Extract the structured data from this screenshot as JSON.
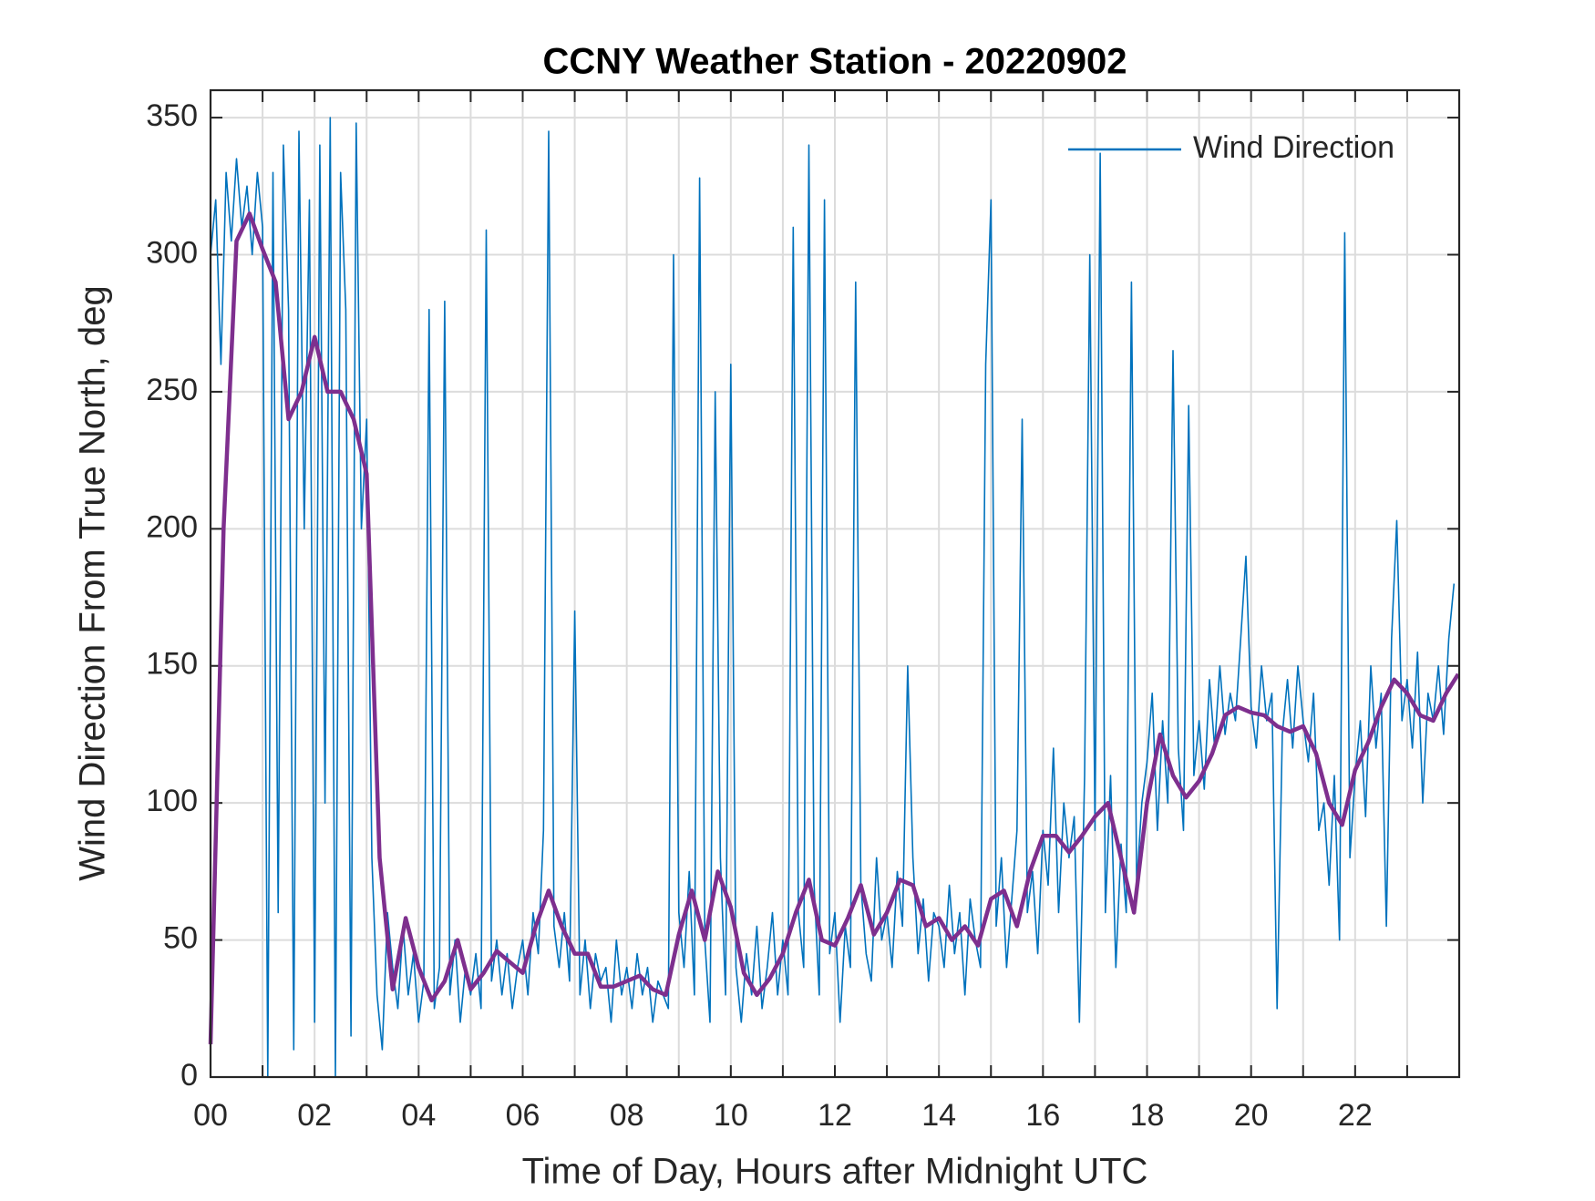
{
  "chart_data": {
    "type": "line",
    "title": "CCNY Weather Station - 20220902",
    "xlabel": "Time of Day, Hours after Midnight UTC",
    "ylabel": "Wind Direction From True North, deg",
    "xlim": [
      0,
      24
    ],
    "ylim": [
      0,
      360
    ],
    "xticks": [
      {
        "value": 0,
        "label": "00"
      },
      {
        "value": 2,
        "label": "02"
      },
      {
        "value": 4,
        "label": "04"
      },
      {
        "value": 6,
        "label": "06"
      },
      {
        "value": 8,
        "label": "08"
      },
      10,
      12,
      14,
      16,
      18,
      20,
      22
    ],
    "xminorticks": [
      1,
      3,
      5,
      7,
      9,
      11,
      13,
      15,
      17,
      19,
      21,
      23
    ],
    "yticks": [
      0,
      50,
      100,
      150,
      200,
      250,
      300,
      350
    ],
    "grid": true,
    "legend": "upper right",
    "series": [
      {
        "name": "Wind Direction",
        "color": "#0072bd",
        "x": [
          0,
          0.1,
          0.2,
          0.3,
          0.4,
          0.5,
          0.6,
          0.7,
          0.8,
          0.9,
          1,
          1.1,
          1.2,
          1.3,
          1.4,
          1.5,
          1.6,
          1.7,
          1.8,
          1.9,
          2,
          2.1,
          2.2,
          2.3,
          2.4,
          2.5,
          2.6,
          2.7,
          2.8,
          2.9,
          3,
          3.1,
          3.2,
          3.3,
          3.4,
          3.5,
          3.6,
          3.7,
          3.8,
          3.9,
          4,
          4.1,
          4.2,
          4.3,
          4.4,
          4.5,
          4.6,
          4.7,
          4.8,
          4.9,
          5,
          5.1,
          5.2,
          5.3,
          5.4,
          5.5,
          5.6,
          5.7,
          5.8,
          5.9,
          6,
          6.1,
          6.2,
          6.3,
          6.4,
          6.5,
          6.6,
          6.7,
          6.8,
          6.9,
          7,
          7.1,
          7.2,
          7.3,
          7.4,
          7.5,
          7.6,
          7.7,
          7.8,
          7.9,
          8,
          8.1,
          8.2,
          8.3,
          8.4,
          8.5,
          8.6,
          8.7,
          8.8,
          8.9,
          9,
          9.1,
          9.2,
          9.3,
          9.4,
          9.5,
          9.6,
          9.7,
          9.8,
          9.9,
          10,
          10.1,
          10.2,
          10.3,
          10.4,
          10.5,
          10.6,
          10.7,
          10.8,
          10.9,
          11,
          11.1,
          11.2,
          11.3,
          11.4,
          11.5,
          11.6,
          11.7,
          11.8,
          11.9,
          12,
          12.1,
          12.2,
          12.3,
          12.4,
          12.5,
          12.6,
          12.7,
          12.8,
          12.9,
          13,
          13.1,
          13.2,
          13.3,
          13.4,
          13.5,
          13.6,
          13.7,
          13.8,
          13.9,
          14,
          14.1,
          14.2,
          14.3,
          14.4,
          14.5,
          14.6,
          14.7,
          14.8,
          14.9,
          15,
          15.1,
          15.2,
          15.3,
          15.4,
          15.5,
          15.6,
          15.7,
          15.8,
          15.9,
          16,
          16.1,
          16.2,
          16.3,
          16.4,
          16.5,
          16.6,
          16.7,
          16.8,
          16.9,
          17,
          17.1,
          17.2,
          17.3,
          17.4,
          17.5,
          17.6,
          17.7,
          17.8,
          17.9,
          18,
          18.1,
          18.2,
          18.3,
          18.4,
          18.5,
          18.6,
          18.7,
          18.8,
          18.9,
          19,
          19.1,
          19.2,
          19.3,
          19.4,
          19.5,
          19.6,
          19.7,
          19.8,
          19.9,
          20,
          20.1,
          20.2,
          20.3,
          20.4,
          20.5,
          20.6,
          20.7,
          20.8,
          20.9,
          21,
          21.1,
          21.2,
          21.3,
          21.4,
          21.5,
          21.6,
          21.7,
          21.8,
          21.9,
          22,
          22.1,
          22.2,
          22.3,
          22.4,
          22.5,
          22.6,
          22.7,
          22.8,
          22.9,
          23,
          23.1,
          23.2,
          23.3,
          23.4,
          23.5,
          23.6,
          23.7,
          23.8,
          23.9
        ],
        "values": [
          300,
          320,
          260,
          330,
          305,
          335,
          310,
          325,
          300,
          330,
          310,
          0,
          330,
          60,
          340,
          280,
          10,
          345,
          200,
          320,
          20,
          340,
          100,
          350,
          0,
          330,
          280,
          15,
          348,
          200,
          240,
          80,
          30,
          10,
          60,
          40,
          25,
          55,
          30,
          45,
          20,
          35,
          280,
          25,
          40,
          283,
          30,
          50,
          20,
          40,
          30,
          45,
          25,
          309,
          35,
          50,
          30,
          45,
          25,
          40,
          50,
          30,
          60,
          45,
          90,
          345,
          55,
          40,
          60,
          35,
          170,
          30,
          50,
          25,
          45,
          35,
          40,
          20,
          50,
          30,
          40,
          25,
          45,
          30,
          40,
          20,
          35,
          30,
          25,
          300,
          60,
          40,
          75,
          30,
          328,
          50,
          20,
          250,
          80,
          30,
          260,
          40,
          20,
          45,
          30,
          55,
          25,
          40,
          60,
          30,
          50,
          30,
          310,
          60,
          40,
          340,
          70,
          30,
          320,
          45,
          60,
          20,
          55,
          40,
          290,
          70,
          45,
          35,
          80,
          50,
          60,
          40,
          75,
          55,
          150,
          80,
          45,
          65,
          35,
          60,
          55,
          40,
          70,
          45,
          60,
          30,
          65,
          50,
          40,
          260,
          320,
          55,
          80,
          40,
          65,
          90,
          240,
          60,
          75,
          45,
          90,
          70,
          120,
          60,
          100,
          80,
          95,
          20,
          110,
          300,
          90,
          337,
          60,
          110,
          40,
          85,
          60,
          290,
          70,
          100,
          115,
          140,
          90,
          130,
          100,
          265,
          120,
          90,
          245,
          110,
          130,
          105,
          145,
          120,
          150,
          125,
          140,
          130,
          160,
          190,
          135,
          120,
          150,
          130,
          140,
          25,
          125,
          145,
          120,
          150,
          130,
          115,
          140,
          90,
          100,
          70,
          110,
          50,
          308,
          80,
          110,
          130,
          95,
          150,
          120,
          140,
          55,
          160,
          203,
          130,
          145,
          120,
          155,
          100,
          140,
          130,
          150,
          125,
          160,
          180
        ]
      },
      {
        "color": "#7e2f8e",
        "x": [
          0,
          0.25,
          0.5,
          0.75,
          1,
          1.25,
          1.5,
          1.75,
          2,
          2.25,
          2.5,
          2.75,
          3,
          3.25,
          3.5,
          3.75,
          4,
          4.25,
          4.5,
          4.75,
          5,
          5.25,
          5.5,
          5.75,
          6,
          6.25,
          6.5,
          6.75,
          7,
          7.25,
          7.5,
          7.75,
          8,
          8.25,
          8.5,
          8.75,
          9,
          9.25,
          9.5,
          9.75,
          10,
          10.25,
          10.5,
          10.75,
          11,
          11.25,
          11.5,
          11.75,
          12,
          12.25,
          12.5,
          12.75,
          13,
          13.25,
          13.5,
          13.75,
          14,
          14.25,
          14.5,
          14.75,
          15,
          15.25,
          15.5,
          15.75,
          16,
          16.25,
          16.5,
          16.75,
          17,
          17.25,
          17.5,
          17.75,
          18,
          18.25,
          18.5,
          18.75,
          19,
          19.25,
          19.5,
          19.75,
          20,
          20.25,
          20.5,
          20.75,
          21,
          21.25,
          21.5,
          21.75,
          22,
          22.25,
          22.5,
          22.75,
          23,
          23.25,
          23.5,
          23.75,
          23.98
        ],
        "values": [
          12,
          200,
          305,
          315,
          302,
          290,
          240,
          250,
          270,
          250,
          250,
          240,
          220,
          80,
          32,
          58,
          40,
          28,
          35,
          50,
          32,
          38,
          46,
          42,
          38,
          55,
          68,
          55,
          45,
          45,
          33,
          33,
          35,
          37,
          32,
          30,
          52,
          68,
          50,
          75,
          62,
          38,
          30,
          36,
          45,
          60,
          72,
          50,
          48,
          58,
          70,
          52,
          60,
          72,
          70,
          55,
          58,
          50,
          55,
          48,
          65,
          68,
          55,
          75,
          88,
          88,
          82,
          88,
          95,
          100,
          80,
          60,
          100,
          125,
          110,
          102,
          108,
          118,
          132,
          135,
          133,
          132,
          128,
          126,
          128,
          118,
          100,
          92,
          112,
          122,
          135,
          145,
          140,
          132,
          130,
          140,
          147
        ]
      }
    ]
  }
}
